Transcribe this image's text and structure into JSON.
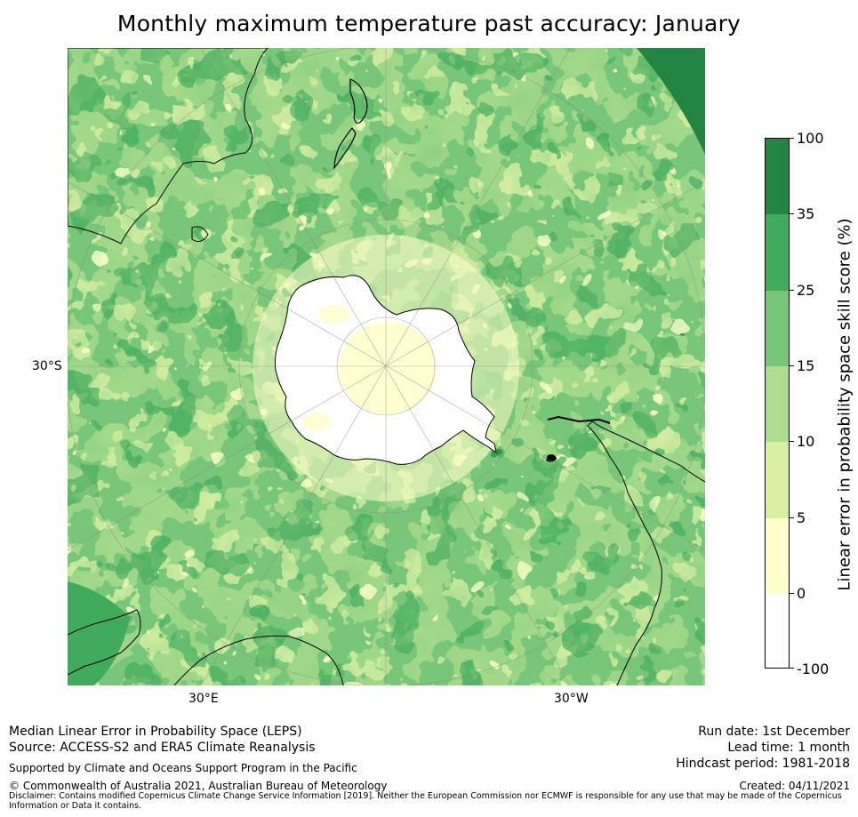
{
  "title": "Monthly maximum temperature past accuracy: January",
  "map": {
    "projection": "south-polar-stereographic",
    "latitude_labels": [
      "30°S"
    ],
    "longitude_labels": [
      "30°E",
      "30°W"
    ]
  },
  "colorbar": {
    "title": "Linear error in probability space skill score (%)",
    "tick_labels": [
      "100",
      "35",
      "25",
      "15",
      "10",
      "5",
      "0",
      "-100"
    ],
    "bins": [
      {
        "range": "-100 to 0",
        "color": "#ffffff"
      },
      {
        "range": "0 to 5",
        "color": "#ffffcc"
      },
      {
        "range": "5 to 10",
        "color": "#d9f0a3"
      },
      {
        "range": "10 to 15",
        "color": "#addd8e"
      },
      {
        "range": "15 to 25",
        "color": "#78c679"
      },
      {
        "range": "25 to 35",
        "color": "#41ab5d"
      },
      {
        "range": "35 to 100",
        "color": "#238443"
      }
    ]
  },
  "footer": {
    "left_line1": "Median Linear Error in Probability Space (LEPS)",
    "left_line2": "Source: ACCESS-S2 and ERA5 Climate Reanalysis",
    "support": "Supported by Climate and Oceans Support Program in the Pacific",
    "copyright": "© Commonwealth of Australia 2021, Australian Bureau of Meteorology",
    "run_date": "Run date: 1st December",
    "lead_time": "Lead time: 1 month",
    "hindcast": "Hindcast period: 1981-2018",
    "created": "Created: 04/11/2021",
    "disclaimer": "Disclaimer: Contains modified Copernicus Climate Change Service Information [2019]. Neither the European Commission nor ECMWF is responsible for any use that may be made of the Copernicus Information or Data it contains."
  }
}
